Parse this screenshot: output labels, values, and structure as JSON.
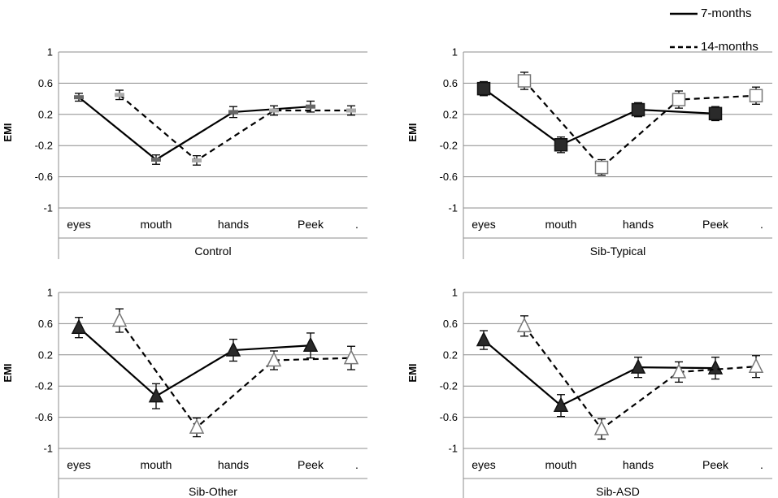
{
  "legend": {
    "series_a": "7-months",
    "series_b": "14-months"
  },
  "chart_data": [
    {
      "type": "line",
      "xlabel": "Control",
      "ylabel": "EMI",
      "ylim": [
        -1,
        1
      ],
      "yticks": [
        "1",
        "0.6",
        "0.2",
        "-0.2",
        "-0.6",
        "-1"
      ],
      "categories": [
        "eyes",
        "mouth",
        "hands",
        "Peek",
        "."
      ],
      "marker": "none",
      "series": [
        {
          "name": "7-months",
          "style": "solid",
          "points": [
            [
              "eyes",
              0.42,
              0.05
            ],
            [
              "mouth",
              -0.38,
              0.06
            ],
            [
              "hands",
              0.23,
              0.07
            ],
            [
              "Peek",
              0.3,
              0.07
            ]
          ]
        },
        {
          "name": "14-months",
          "style": "dashed",
          "points": [
            [
              "eyes",
              0.45,
              0.06
            ],
            [
              "mouth",
              -0.39,
              0.06
            ],
            [
              "hands",
              0.25,
              0.06
            ],
            [
              "Peek",
              0.25,
              0.06
            ]
          ]
        }
      ]
    },
    {
      "type": "line",
      "xlabel": "Sib-Typical",
      "ylabel": "EMI",
      "ylim": [
        -1,
        1
      ],
      "yticks": [
        "1",
        "0.6",
        "0.2",
        "-0.2",
        "-0.6",
        "-1"
      ],
      "categories": [
        "eyes",
        "mouth",
        "hands",
        "Peek",
        "."
      ],
      "marker": "square",
      "series": [
        {
          "name": "7-months",
          "style": "solid",
          "points": [
            [
              "eyes",
              0.53,
              0.09
            ],
            [
              "mouth",
              -0.19,
              0.1
            ],
            [
              "hands",
              0.26,
              0.09
            ],
            [
              "Peek",
              0.21,
              0.09
            ]
          ]
        },
        {
          "name": "14-months",
          "style": "dashed",
          "points": [
            [
              "eyes",
              0.63,
              0.11
            ],
            [
              "mouth",
              -0.48,
              0.1
            ],
            [
              "hands",
              0.39,
              0.11
            ],
            [
              "Peek",
              0.44,
              0.11
            ]
          ]
        }
      ]
    },
    {
      "type": "line",
      "xlabel": "Sib-Other",
      "ylabel": "EMI",
      "ylim": [
        -1,
        1
      ],
      "yticks": [
        "1",
        "0.6",
        "0.2",
        "-0.2",
        "-0.6",
        "-1"
      ],
      "categories": [
        "eyes",
        "mouth",
        "hands",
        "Peek",
        "."
      ],
      "marker": "triangle",
      "series": [
        {
          "name": "7-months",
          "style": "solid",
          "points": [
            [
              "eyes",
              0.55,
              0.13
            ],
            [
              "mouth",
              -0.33,
              0.16
            ],
            [
              "hands",
              0.26,
              0.14
            ],
            [
              "Peek",
              0.32,
              0.16
            ]
          ]
        },
        {
          "name": "14-months",
          "style": "dashed",
          "points": [
            [
              "eyes",
              0.64,
              0.15
            ],
            [
              "mouth",
              -0.73,
              0.12
            ],
            [
              "hands",
              0.13,
              0.12
            ],
            [
              "Peek",
              0.16,
              0.15
            ]
          ]
        }
      ]
    },
    {
      "type": "line",
      "xlabel": "Sib-ASD",
      "ylabel": "EMI",
      "ylim": [
        -1,
        1
      ],
      "yticks": [
        "1",
        "0.6",
        "0.2",
        "-0.2",
        "-0.6",
        "-1"
      ],
      "categories": [
        "eyes",
        "mouth",
        "hands",
        "Peek",
        "."
      ],
      "marker": "triangle",
      "series": [
        {
          "name": "7-months",
          "style": "solid",
          "points": [
            [
              "eyes",
              0.39,
              0.12
            ],
            [
              "mouth",
              -0.45,
              0.14
            ],
            [
              "hands",
              0.04,
              0.13
            ],
            [
              "Peek",
              0.03,
              0.14
            ]
          ]
        },
        {
          "name": "14-months",
          "style": "dashed",
          "points": [
            [
              "eyes",
              0.57,
              0.13
            ],
            [
              "mouth",
              -0.75,
              0.13
            ],
            [
              "hands",
              -0.02,
              0.13
            ],
            [
              "Peek",
              0.05,
              0.14
            ]
          ]
        }
      ]
    }
  ]
}
